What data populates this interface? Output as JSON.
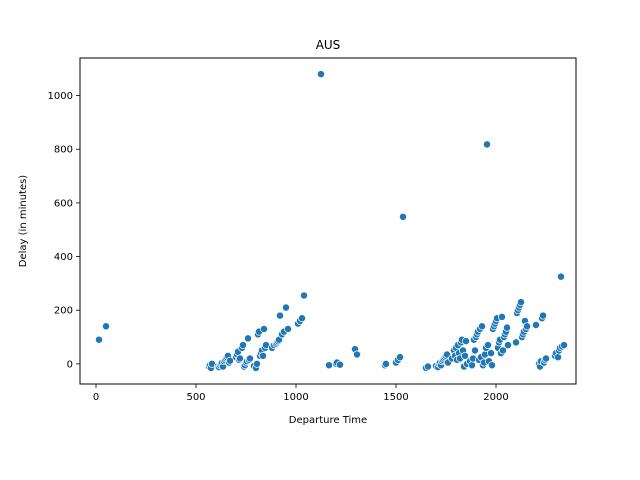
{
  "chart_data": {
    "type": "scatter",
    "title": "AUS",
    "xlabel": "Departure Time",
    "ylabel": "Delay (in minutes)",
    "xlim": [
      -80,
      2400
    ],
    "ylim": [
      -75,
      1140
    ],
    "xticks": [
      0,
      500,
      1000,
      1500,
      2000
    ],
    "yticks": [
      0,
      200,
      400,
      600,
      800,
      1000
    ],
    "grid": false,
    "marker_color": "#1f77b4",
    "points": [
      [
        15,
        90
      ],
      [
        50,
        140
      ],
      [
        565,
        -10
      ],
      [
        570,
        -5
      ],
      [
        575,
        -15
      ],
      [
        580,
        0
      ],
      [
        610,
        -8
      ],
      [
        615,
        -12
      ],
      [
        620,
        -5
      ],
      [
        625,
        0
      ],
      [
        630,
        5
      ],
      [
        635,
        -10
      ],
      [
        640,
        10
      ],
      [
        645,
        15
      ],
      [
        650,
        20
      ],
      [
        655,
        25
      ],
      [
        660,
        30
      ],
      [
        665,
        5
      ],
      [
        670,
        12
      ],
      [
        700,
        25
      ],
      [
        705,
        35
      ],
      [
        710,
        45
      ],
      [
        715,
        15
      ],
      [
        720,
        20
      ],
      [
        730,
        60
      ],
      [
        735,
        70
      ],
      [
        740,
        -10
      ],
      [
        745,
        -5
      ],
      [
        750,
        5
      ],
      [
        755,
        10
      ],
      [
        760,
        95
      ],
      [
        765,
        15
      ],
      [
        770,
        20
      ],
      [
        790,
        -8
      ],
      [
        800,
        -15
      ],
      [
        805,
        0
      ],
      [
        810,
        110
      ],
      [
        815,
        120
      ],
      [
        820,
        30
      ],
      [
        825,
        40
      ],
      [
        830,
        50
      ],
      [
        835,
        30
      ],
      [
        840,
        130
      ],
      [
        845,
        60
      ],
      [
        850,
        70
      ],
      [
        880,
        60
      ],
      [
        890,
        70
      ],
      [
        900,
        75
      ],
      [
        905,
        80
      ],
      [
        910,
        85
      ],
      [
        915,
        90
      ],
      [
        920,
        180
      ],
      [
        930,
        110
      ],
      [
        940,
        120
      ],
      [
        950,
        210
      ],
      [
        960,
        130
      ],
      [
        1010,
        150
      ],
      [
        1020,
        160
      ],
      [
        1030,
        170
      ],
      [
        1040,
        255
      ],
      [
        1125,
        1080
      ],
      [
        1165,
        -5
      ],
      [
        1200,
        0
      ],
      [
        1205,
        5
      ],
      [
        1220,
        -3
      ],
      [
        1295,
        55
      ],
      [
        1305,
        35
      ],
      [
        1445,
        -5
      ],
      [
        1450,
        0
      ],
      [
        1500,
        5
      ],
      [
        1510,
        15
      ],
      [
        1520,
        25
      ],
      [
        1535,
        548
      ],
      [
        1650,
        -15
      ],
      [
        1660,
        -10
      ],
      [
        1700,
        -8
      ],
      [
        1710,
        -12
      ],
      [
        1715,
        0
      ],
      [
        1720,
        5
      ],
      [
        1725,
        -5
      ],
      [
        1730,
        10
      ],
      [
        1735,
        15
      ],
      [
        1740,
        20
      ],
      [
        1745,
        25
      ],
      [
        1750,
        30
      ],
      [
        1755,
        35
      ],
      [
        1760,
        5
      ],
      [
        1780,
        20
      ],
      [
        1790,
        50
      ],
      [
        1795,
        30
      ],
      [
        1800,
        60
      ],
      [
        1805,
        15
      ],
      [
        1810,
        70
      ],
      [
        1815,
        40
      ],
      [
        1820,
        20
      ],
      [
        1825,
        80
      ],
      [
        1830,
        90
      ],
      [
        1835,
        50
      ],
      [
        1840,
        -10
      ],
      [
        1845,
        30
      ],
      [
        1850,
        85
      ],
      [
        1855,
        0
      ],
      [
        1870,
        10
      ],
      [
        1880,
        -5
      ],
      [
        1885,
        20
      ],
      [
        1890,
        90
      ],
      [
        1895,
        50
      ],
      [
        1900,
        100
      ],
      [
        1905,
        110
      ],
      [
        1910,
        120
      ],
      [
        1915,
        15
      ],
      [
        1920,
        130
      ],
      [
        1925,
        25
      ],
      [
        1930,
        140
      ],
      [
        1935,
        -5
      ],
      [
        1940,
        5
      ],
      [
        1945,
        35
      ],
      [
        1950,
        60
      ],
      [
        1955,
        818
      ],
      [
        1960,
        70
      ],
      [
        1965,
        10
      ],
      [
        1975,
        40
      ],
      [
        1980,
        -5
      ],
      [
        1985,
        130
      ],
      [
        1990,
        140
      ],
      [
        1995,
        150
      ],
      [
        2000,
        160
      ],
      [
        2005,
        170
      ],
      [
        2010,
        60
      ],
      [
        2015,
        80
      ],
      [
        2020,
        90
      ],
      [
        2025,
        40
      ],
      [
        2030,
        175
      ],
      [
        2035,
        50
      ],
      [
        2040,
        100
      ],
      [
        2045,
        110
      ],
      [
        2050,
        120
      ],
      [
        2055,
        135
      ],
      [
        2060,
        70
      ],
      [
        2100,
        80
      ],
      [
        2105,
        190
      ],
      [
        2110,
        200
      ],
      [
        2115,
        210
      ],
      [
        2120,
        220
      ],
      [
        2125,
        230
      ],
      [
        2130,
        100
      ],
      [
        2135,
        110
      ],
      [
        2140,
        120
      ],
      [
        2145,
        160
      ],
      [
        2150,
        130
      ],
      [
        2155,
        140
      ],
      [
        2200,
        145
      ],
      [
        2215,
        0
      ],
      [
        2220,
        -10
      ],
      [
        2225,
        10
      ],
      [
        2230,
        170
      ],
      [
        2235,
        180
      ],
      [
        2240,
        5
      ],
      [
        2245,
        15
      ],
      [
        2250,
        20
      ],
      [
        2295,
        30
      ],
      [
        2300,
        40
      ],
      [
        2310,
        25
      ],
      [
        2315,
        50
      ],
      [
        2320,
        60
      ],
      [
        2325,
        325
      ],
      [
        2330,
        65
      ],
      [
        2340,
        70
      ]
    ]
  }
}
